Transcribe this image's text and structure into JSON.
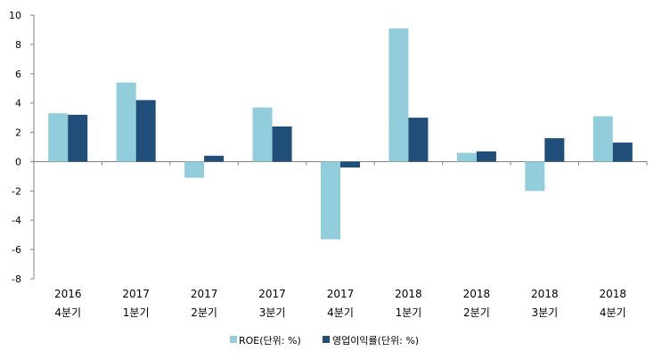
{
  "chart_data": {
    "type": "bar",
    "categories": [
      [
        "2016",
        "4분기"
      ],
      [
        "2017",
        "1분기"
      ],
      [
        "2017",
        "2분기"
      ],
      [
        "2017",
        "3분기"
      ],
      [
        "2017",
        "4분기"
      ],
      [
        "2018",
        "1분기"
      ],
      [
        "2018",
        "2분기"
      ],
      [
        "2018",
        "3분기"
      ],
      [
        "2018",
        "4분기"
      ]
    ],
    "series": [
      {
        "name": "ROE(단위: %)",
        "color": "#92cddc",
        "values": [
          3.3,
          5.4,
          -1.1,
          3.7,
          -5.3,
          9.1,
          0.6,
          -2.0,
          3.1
        ]
      },
      {
        "name": "영업이익률(단위: %)",
        "color": "#1f4e79",
        "values": [
          3.2,
          4.2,
          0.4,
          2.4,
          -0.4,
          3.0,
          0.7,
          1.6,
          1.3
        ]
      }
    ],
    "ylim": [
      -8,
      10
    ],
    "yticks": [
      -8,
      -6,
      -4,
      -2,
      0,
      2,
      4,
      6,
      8,
      10
    ],
    "grid": false,
    "legend": "bottom"
  }
}
